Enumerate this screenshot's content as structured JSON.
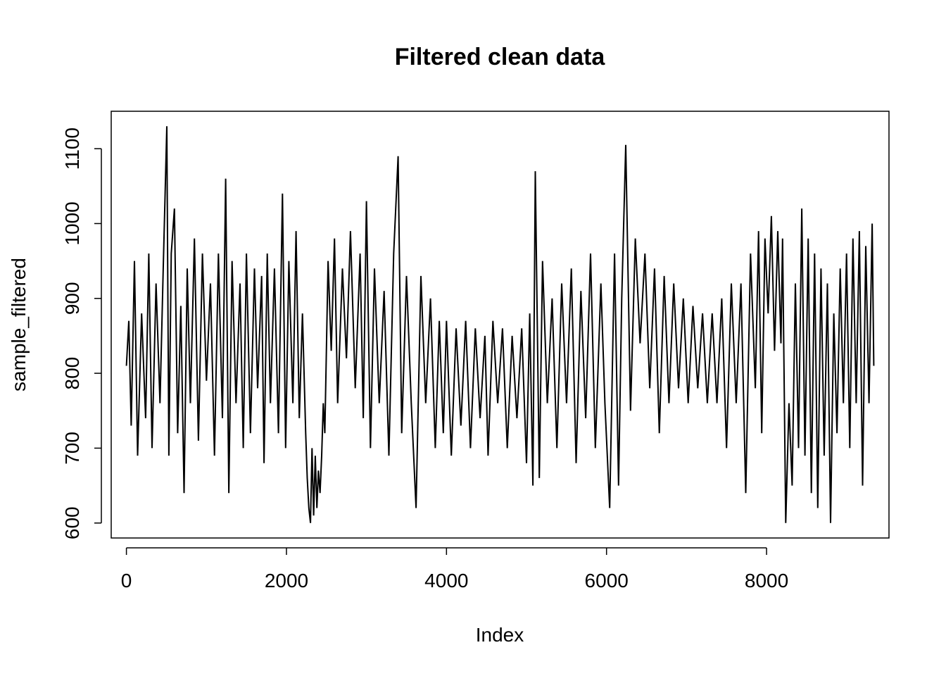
{
  "chart_data": {
    "type": "line",
    "title": "Filtered clean data",
    "xlabel": "Index",
    "ylabel": "sample_filtered",
    "xlim": [
      -190,
      9530
    ],
    "ylim": [
      580,
      1150
    ],
    "x_ticks": [
      0,
      2000,
      4000,
      6000,
      8000
    ],
    "y_ticks": [
      600,
      700,
      800,
      900,
      1000,
      1100
    ],
    "grid": false,
    "legend": "none",
    "line_color": "#000000",
    "series": [
      {
        "x": [
          0,
          30,
          60,
          100,
          140,
          190,
          240,
          280,
          320,
          370,
          420,
          460,
          505,
          530,
          560,
          600,
          640,
          680,
          720,
          760,
          800,
          850,
          900,
          950,
          1000,
          1050,
          1100,
          1150,
          1200,
          1240,
          1280,
          1320,
          1370,
          1420,
          1460,
          1500,
          1550,
          1600,
          1640,
          1690,
          1720,
          1760,
          1800,
          1850,
          1900,
          1950,
          1990,
          2030,
          2080,
          2120,
          2160,
          2200,
          2240,
          2260,
          2280,
          2300,
          2320,
          2340,
          2360,
          2380,
          2400,
          2420,
          2440,
          2460,
          2480,
          2520,
          2560,
          2600,
          2640,
          2700,
          2750,
          2800,
          2860,
          2920,
          2960,
          3000,
          3050,
          3100,
          3160,
          3220,
          3280,
          3340,
          3395,
          3440,
          3500,
          3560,
          3620,
          3680,
          3740,
          3800,
          3860,
          3910,
          3960,
          4000,
          4060,
          4120,
          4180,
          4240,
          4300,
          4360,
          4420,
          4480,
          4520,
          4580,
          4640,
          4700,
          4760,
          4820,
          4880,
          4940,
          5000,
          5040,
          5080,
          5110,
          5160,
          5200,
          5260,
          5320,
          5380,
          5440,
          5500,
          5560,
          5620,
          5680,
          5740,
          5800,
          5860,
          5930,
          5980,
          6040,
          6100,
          6150,
          6190,
          6240,
          6300,
          6360,
          6420,
          6480,
          6540,
          6600,
          6660,
          6720,
          6780,
          6840,
          6900,
          6960,
          7020,
          7080,
          7140,
          7200,
          7260,
          7320,
          7380,
          7440,
          7500,
          7560,
          7620,
          7680,
          7740,
          7800,
          7860,
          7900,
          7940,
          7980,
          8020,
          8060,
          8100,
          8140,
          8180,
          8200,
          8240,
          8280,
          8320,
          8360,
          8400,
          8440,
          8480,
          8520,
          8560,
          8600,
          8640,
          8680,
          8720,
          8760,
          8800,
          8840,
          8880,
          8920,
          8960,
          9000,
          9040,
          9080,
          9120,
          9160,
          9200,
          9240,
          9280,
          9320,
          9340
        ],
        "y": [
          810,
          870,
          730,
          950,
          690,
          880,
          740,
          960,
          700,
          920,
          760,
          940,
          1130,
          690,
          960,
          1020,
          720,
          890,
          640,
          940,
          760,
          980,
          710,
          960,
          790,
          920,
          690,
          960,
          740,
          1060,
          640,
          950,
          760,
          920,
          700,
          960,
          720,
          940,
          780,
          930,
          680,
          960,
          760,
          940,
          720,
          1040,
          700,
          950,
          760,
          990,
          740,
          880,
          720,
          660,
          620,
          600,
          700,
          610,
          690,
          620,
          670,
          640,
          690,
          760,
          720,
          950,
          830,
          980,
          760,
          940,
          820,
          990,
          780,
          960,
          740,
          1030,
          700,
          940,
          760,
          910,
          690,
          960,
          1090,
          720,
          930,
          760,
          620,
          930,
          760,
          900,
          700,
          870,
          720,
          870,
          690,
          860,
          730,
          870,
          700,
          860,
          740,
          850,
          690,
          870,
          760,
          860,
          700,
          850,
          740,
          860,
          680,
          880,
          650,
          1070,
          660,
          950,
          760,
          900,
          700,
          920,
          760,
          940,
          680,
          910,
          740,
          960,
          700,
          920,
          760,
          620,
          960,
          650,
          900,
          1105,
          750,
          980,
          840,
          960,
          780,
          940,
          720,
          930,
          760,
          920,
          780,
          900,
          760,
          890,
          780,
          880,
          760,
          880,
          760,
          900,
          700,
          920,
          760,
          920,
          640,
          960,
          780,
          990,
          720,
          980,
          880,
          1010,
          830,
          990,
          840,
          980,
          600,
          760,
          650,
          920,
          700,
          1020,
          690,
          980,
          640,
          960,
          620,
          940,
          690,
          920,
          600,
          880,
          720,
          940,
          760,
          960,
          700,
          980,
          760,
          990,
          650,
          970,
          760,
          1000,
          810
        ]
      }
    ]
  }
}
